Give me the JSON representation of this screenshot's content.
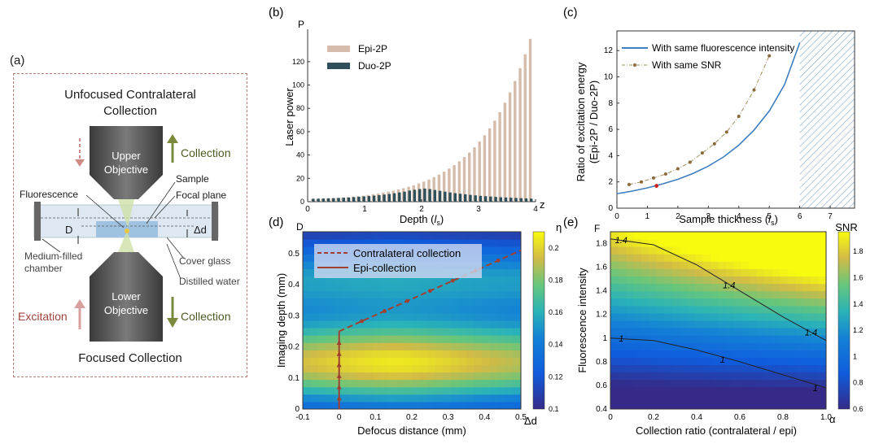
{
  "panel_a": {
    "tag": "(a)",
    "top_title_1": "Unfocused Contralateral",
    "top_title_2": "Collection",
    "upper_obj_1": "Upper",
    "upper_obj_2": "Objective",
    "lower_obj_1": "Lower",
    "lower_obj_2": "Objective",
    "collection_top": "Collection",
    "collection_bottom": "Collection",
    "excitation": "Excitation",
    "sample": "Sample",
    "focal_plane": "Focal plane",
    "fluorescence": "Fluorescence",
    "d_label": "D",
    "dd_label": "Δd",
    "medium_1": "Medium-filled",
    "medium_2": "chamber",
    "cover_glass": "Cover glass",
    "distilled_water": "Distilled water",
    "bottom_title": "Focused Collection",
    "colors": {
      "excitation": "#b05a56",
      "collection": "#7a8a3c",
      "objective": "#555555"
    }
  },
  "panel_labels": {
    "b": "(b)",
    "c": "(c)",
    "d": "(d)",
    "e": "(e)"
  },
  "chart_data": [
    {
      "id": "b",
      "type": "bar",
      "xlabel_main": "Depth (",
      "xlabel_sym": "l",
      "xlabel_sub": "s",
      "xlabel_end": ")",
      "ylabel": "Laser power",
      "axis_y_letter": "P",
      "axis_x_letter": "z",
      "xlim": [
        0,
        4
      ],
      "ylim": [
        0,
        145
      ],
      "xticks": [
        "0",
        "1",
        "2",
        "3",
        "4"
      ],
      "yticks": [
        "0",
        "20",
        "40",
        "60",
        "80",
        "100",
        "120"
      ],
      "series": [
        {
          "name": "Epi-2P",
          "color": "#d6bcaa",
          "values": [
            2.0,
            2.2,
            2.4,
            2.6,
            2.9,
            3.2,
            3.5,
            3.9,
            4.3,
            4.7,
            5.2,
            5.8,
            6.4,
            7.0,
            7.8,
            8.6,
            9.5,
            10.5,
            11.6,
            12.8,
            14.1,
            15.6,
            17.2,
            19.0,
            21.0,
            23.2,
            25.7,
            28.4,
            31.3,
            34.6,
            38.2,
            42.2,
            46.6,
            51.5,
            56.9,
            62.9,
            69.5,
            76.8,
            84.8,
            93.7,
            103.5,
            114.4,
            126.4,
            139.6
          ]
        },
        {
          "name": "Duo-2P",
          "color": "#2f4f5a",
          "values": [
            2.5,
            2.6,
            2.7,
            2.9,
            3.0,
            3.2,
            3.4,
            3.6,
            3.9,
            4.2,
            4.5,
            4.8,
            5.2,
            5.6,
            6.1,
            6.6,
            7.2,
            7.9,
            8.6,
            9.5,
            10.2,
            10.8,
            11.2,
            10.8,
            10.0,
            9.3,
            8.6,
            7.9,
            7.3,
            6.8,
            6.3,
            5.8,
            5.4,
            5.0,
            4.7,
            4.4,
            4.1,
            3.8,
            3.6,
            3.4,
            3.2,
            3.0,
            2.8,
            2.6
          ]
        }
      ],
      "legend": "top-left"
    },
    {
      "id": "c",
      "type": "line",
      "xlabel_main": "Sample thickness (",
      "xlabel_sym": "l",
      "xlabel_sub": "s",
      "xlabel_end": ")",
      "ylabel_1": "Ratio of excitation energy",
      "ylabel_2": "(Epi-2P / Duo-2P)",
      "xlim": [
        0,
        7.8
      ],
      "ylim": [
        0,
        13.5
      ],
      "xticks": [
        "0",
        "1",
        "2",
        "3",
        "4",
        "5",
        "6",
        "7"
      ],
      "yticks": [
        "0",
        "2",
        "4",
        "6",
        "8",
        "10",
        "12"
      ],
      "hatch_region": [
        6,
        7.8
      ],
      "series": [
        {
          "name": "With same fluorescence intensity",
          "color": "#3f7fbf",
          "style": "solid",
          "x": [
            0,
            0.5,
            1,
            1.5,
            2,
            2.5,
            3,
            3.5,
            4,
            4.5,
            5,
            5.5,
            6
          ],
          "y": [
            1.1,
            1.3,
            1.55,
            1.85,
            2.2,
            2.65,
            3.2,
            3.9,
            4.8,
            5.95,
            7.4,
            9.4,
            12.6
          ]
        },
        {
          "name": "With same SNR",
          "color": "#a09060",
          "style": "dash-dot",
          "x": [
            0.4,
            0.8,
            1.2,
            1.6,
            2.0,
            2.4,
            2.8,
            3.2,
            3.6,
            4.0,
            4.5,
            5.0
          ],
          "y": [
            1.8,
            2.0,
            2.3,
            2.6,
            3.0,
            3.5,
            4.2,
            4.9,
            5.8,
            7.0,
            9.0,
            11.6
          ]
        }
      ],
      "highlight_point": {
        "x": 1.3,
        "y": 1.7,
        "color": "#cc2222"
      },
      "legend": "top-left"
    },
    {
      "id": "d",
      "type": "heatmap",
      "xlabel": "Defocus distance (mm)",
      "ylabel": "Imaging depth (mm)",
      "axis_y_letter": "D",
      "axis_x_letter": "Δd",
      "xlim": [
        -0.1,
        0.5
      ],
      "ylim": [
        0,
        0.57
      ],
      "xticks": [
        "-0.1",
        "0",
        "0.1",
        "0.2",
        "0.3",
        "0.4",
        "0.5"
      ],
      "yticks": [
        "0",
        "0.1",
        "0.2",
        "0.3",
        "0.4",
        "0.5"
      ],
      "colorbar": {
        "label": "η",
        "min": 0.1,
        "max": 0.21,
        "ticks": [
          "0.1",
          "0.12",
          "0.14",
          "0.16",
          "0.18",
          "0.2"
        ]
      },
      "series": [
        {
          "name": "Contralateral collection",
          "style": "dashed",
          "color": "#a04030",
          "x": [
            0.0,
            0.5
          ],
          "y": [
            0.25,
            0.51
          ]
        },
        {
          "name": "Epi-collection",
          "style": "solid",
          "color": "#a04030",
          "x": [
            0.0,
            0.0
          ],
          "y": [
            0.0,
            0.25
          ]
        }
      ],
      "legend": "top-left"
    },
    {
      "id": "e",
      "type": "heatmap",
      "xlabel": "Collection ratio (contralateral / epi)",
      "ylabel": "Fluorescence intensity",
      "axis_y_letter": "F",
      "axis_x_letter": "α",
      "xlim": [
        0,
        1
      ],
      "ylim": [
        0.4,
        1.9
      ],
      "xticks": [
        "0",
        "0.2",
        "0.4",
        "0.6",
        "0.8",
        "1.0"
      ],
      "yticks": [
        "0.4",
        "0.6",
        "0.8",
        "1",
        "1.2",
        "1.4",
        "1.6",
        "1.8"
      ],
      "colorbar": {
        "label": "SNR",
        "min": 0.6,
        "max": 1.95,
        "ticks": [
          "0.6",
          "0.8",
          "1",
          "1.2",
          "1.4",
          "1.6",
          "1.8"
        ]
      },
      "contours": [
        {
          "level": "1.4",
          "labels": [
            "1.4",
            "1.4",
            "1.4"
          ]
        },
        {
          "level": "1",
          "labels": [
            "1",
            "1",
            "1"
          ]
        }
      ]
    }
  ]
}
